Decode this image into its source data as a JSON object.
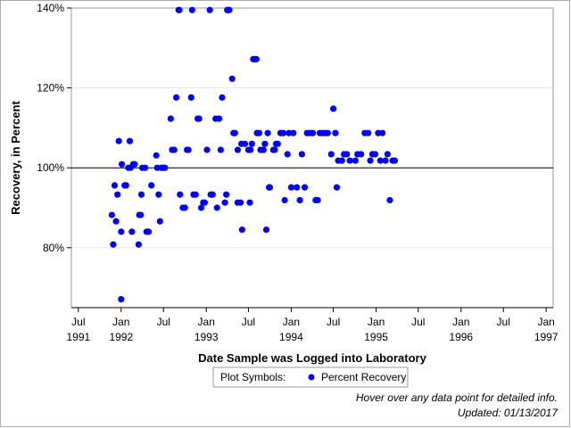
{
  "chart_data": {
    "type": "scatter",
    "title": "",
    "xlabel": "Date Sample was Logged into Laboratory",
    "ylabel": "Recovery, in Percent",
    "xlim": [
      "1991-06-01",
      "1997-01-31"
    ],
    "ylim": [
      65,
      140
    ],
    "x_ticks": [
      {
        "date": "1991-07-01",
        "line1": "Jul",
        "line2": "1991"
      },
      {
        "date": "1992-01-01",
        "line1": "Jan",
        "line2": "1992"
      },
      {
        "date": "1992-07-01",
        "line1": "Jul",
        "line2": ""
      },
      {
        "date": "1993-01-01",
        "line1": "Jan",
        "line2": "1993"
      },
      {
        "date": "1993-07-01",
        "line1": "Jul",
        "line2": ""
      },
      {
        "date": "1994-01-01",
        "line1": "Jan",
        "line2": "1994"
      },
      {
        "date": "1994-07-01",
        "line1": "Jul",
        "line2": ""
      },
      {
        "date": "1995-01-01",
        "line1": "Jan",
        "line2": "1995"
      },
      {
        "date": "1995-07-01",
        "line1": "Jul",
        "line2": ""
      },
      {
        "date": "1996-01-01",
        "line1": "Jan",
        "line2": "1996"
      },
      {
        "date": "1996-07-01",
        "line1": "Jul",
        "line2": ""
      },
      {
        "date": "1997-01-01",
        "line1": "Jan",
        "line2": "1997"
      }
    ],
    "y_ticks": [
      {
        "value": 80,
        "label": "80%"
      },
      {
        "value": 100,
        "label": "100%"
      },
      {
        "value": 120,
        "label": "120%"
      },
      {
        "value": 140,
        "label": "140%"
      }
    ],
    "reference_line": 100,
    "grid": true,
    "marker_color": "#0000ff",
    "series": [
      {
        "name": "Percent Recovery",
        "points": [
          [
            "1991-11-22",
            88.2
          ],
          [
            "1991-11-28",
            80.8
          ],
          [
            "1991-12-04",
            95.6
          ],
          [
            "1991-12-10",
            86.6
          ],
          [
            "1991-12-16",
            93.3
          ],
          [
            "1991-12-22",
            106.7
          ],
          [
            "1992-01-01",
            84.0
          ],
          [
            "1992-01-01",
            67.1
          ],
          [
            "1992-01-04",
            100.9
          ],
          [
            "1992-01-16",
            95.6
          ],
          [
            "1992-01-22",
            95.6
          ],
          [
            "1992-02-01",
            100.0
          ],
          [
            "1992-02-07",
            106.7
          ],
          [
            "1992-02-10",
            100.0
          ],
          [
            "1992-02-16",
            84.0
          ],
          [
            "1992-02-22",
            100.9
          ],
          [
            "1992-02-28",
            100.9
          ],
          [
            "1992-03-16",
            80.8
          ],
          [
            "1992-03-19",
            88.2
          ],
          [
            "1992-03-25",
            88.2
          ],
          [
            "1992-03-28",
            93.3
          ],
          [
            "1992-04-01",
            100.0
          ],
          [
            "1992-04-13",
            100.0
          ],
          [
            "1992-04-19",
            84.0
          ],
          [
            "1992-04-28",
            84.0
          ],
          [
            "1992-05-10",
            95.6
          ],
          [
            "1992-05-31",
            103.1
          ],
          [
            "1992-06-04",
            100.0
          ],
          [
            "1992-06-10",
            93.3
          ],
          [
            "1992-06-16",
            86.6
          ],
          [
            "1992-06-22",
            100.0
          ],
          [
            "1992-07-01",
            100.0
          ],
          [
            "1992-07-07",
            100.0
          ],
          [
            "1992-08-01",
            112.3
          ],
          [
            "1992-08-07",
            104.5
          ],
          [
            "1992-08-16",
            104.5
          ],
          [
            "1992-08-25",
            117.6
          ],
          [
            "1992-09-04",
            139.5
          ],
          [
            "1992-09-07",
            139.5
          ],
          [
            "1992-09-10",
            93.3
          ],
          [
            "1992-09-22",
            90.0
          ],
          [
            "1992-10-01",
            90.0
          ],
          [
            "1992-10-10",
            104.5
          ],
          [
            "1992-10-16",
            104.5
          ],
          [
            "1992-10-28",
            117.6
          ],
          [
            "1992-11-01",
            139.5
          ],
          [
            "1992-11-07",
            93.3
          ],
          [
            "1992-11-16",
            93.3
          ],
          [
            "1992-11-25",
            112.3
          ],
          [
            "1992-12-01",
            112.3
          ],
          [
            "1992-12-10",
            90.0
          ],
          [
            "1992-12-19",
            91.3
          ],
          [
            "1992-12-25",
            91.3
          ],
          [
            "1993-01-04",
            104.5
          ],
          [
            "1993-01-16",
            139.5
          ],
          [
            "1993-01-20",
            93.3
          ],
          [
            "1993-01-28",
            93.3
          ],
          [
            "1993-02-10",
            112.3
          ],
          [
            "1993-02-16",
            90.0
          ],
          [
            "1993-02-25",
            112.3
          ],
          [
            "1993-03-04",
            104.5
          ],
          [
            "1993-03-10",
            117.6
          ],
          [
            "1993-03-22",
            91.3
          ],
          [
            "1993-03-28",
            93.3
          ],
          [
            "1993-04-01",
            139.5
          ],
          [
            "1993-04-07",
            139.5
          ],
          [
            "1993-04-10",
            139.5
          ],
          [
            "1993-04-22",
            122.3
          ],
          [
            "1993-04-28",
            108.7
          ],
          [
            "1993-05-04",
            108.7
          ],
          [
            "1993-05-16",
            104.5
          ],
          [
            "1993-05-16",
            91.3
          ],
          [
            "1993-05-28",
            91.3
          ],
          [
            "1993-06-01",
            106.0
          ],
          [
            "1993-06-04",
            84.5
          ],
          [
            "1993-06-16",
            106.0
          ],
          [
            "1993-07-01",
            104.5
          ],
          [
            "1993-07-07",
            91.3
          ],
          [
            "1993-07-10",
            104.5
          ],
          [
            "1993-07-16",
            106.0
          ],
          [
            "1993-07-22",
            127.2
          ],
          [
            "1993-07-28",
            127.2
          ],
          [
            "1993-08-04",
            127.2
          ],
          [
            "1993-08-07",
            108.7
          ],
          [
            "1993-08-16",
            108.7
          ],
          [
            "1993-08-22",
            104.5
          ],
          [
            "1993-08-28",
            104.5
          ],
          [
            "1993-09-04",
            104.5
          ],
          [
            "1993-09-10",
            106.0
          ],
          [
            "1993-09-16",
            84.5
          ],
          [
            "1993-09-22",
            108.7
          ],
          [
            "1993-09-28",
            95.1
          ],
          [
            "1993-10-01",
            95.1
          ],
          [
            "1993-10-16",
            104.5
          ],
          [
            "1993-10-22",
            104.5
          ],
          [
            "1993-10-28",
            106.0
          ],
          [
            "1993-11-04",
            106.0
          ],
          [
            "1993-11-16",
            108.7
          ],
          [
            "1993-11-28",
            108.7
          ],
          [
            "1993-12-04",
            91.9
          ],
          [
            "1993-12-16",
            103.4
          ],
          [
            "1993-12-22",
            108.7
          ],
          [
            "1994-01-01",
            95.1
          ],
          [
            "1994-01-10",
            108.7
          ],
          [
            "1994-01-25",
            95.1
          ],
          [
            "1994-02-07",
            91.9
          ],
          [
            "1994-02-16",
            103.4
          ],
          [
            "1994-02-28",
            95.1
          ],
          [
            "1994-03-10",
            108.7
          ],
          [
            "1994-03-22",
            108.7
          ],
          [
            "1994-04-04",
            108.7
          ],
          [
            "1994-04-16",
            91.9
          ],
          [
            "1994-04-25",
            91.9
          ],
          [
            "1994-05-04",
            108.7
          ],
          [
            "1994-05-16",
            108.7
          ],
          [
            "1994-05-28",
            108.7
          ],
          [
            "1994-06-07",
            108.7
          ],
          [
            "1994-06-22",
            103.4
          ],
          [
            "1994-07-01",
            114.8
          ],
          [
            "1994-07-10",
            108.7
          ],
          [
            "1994-07-16",
            95.1
          ],
          [
            "1994-07-22",
            101.8
          ],
          [
            "1994-08-07",
            101.8
          ],
          [
            "1994-08-16",
            103.4
          ],
          [
            "1994-08-28",
            103.4
          ],
          [
            "1994-09-10",
            101.8
          ],
          [
            "1994-10-04",
            101.8
          ],
          [
            "1994-10-13",
            103.4
          ],
          [
            "1994-10-28",
            103.4
          ],
          [
            "1994-11-13",
            108.7
          ],
          [
            "1994-11-28",
            108.7
          ],
          [
            "1994-12-07",
            101.8
          ],
          [
            "1994-12-16",
            103.4
          ],
          [
            "1994-12-28",
            103.4
          ],
          [
            "1995-01-10",
            108.7
          ],
          [
            "1995-01-19",
            101.8
          ],
          [
            "1995-01-28",
            108.7
          ],
          [
            "1995-02-10",
            101.8
          ],
          [
            "1995-02-19",
            103.4
          ],
          [
            "1995-03-01",
            91.9
          ],
          [
            "1995-03-13",
            101.8
          ],
          [
            "1995-03-22",
            101.8
          ]
        ]
      }
    ]
  },
  "legend": {
    "prefix": "Plot Symbols:",
    "items": [
      {
        "label": "Percent Recovery",
        "color": "#0000ff"
      }
    ]
  },
  "footnotes": {
    "hover_note": "Hover over any data point for detailed info.",
    "updated": "Updated: 01/13/2017"
  }
}
